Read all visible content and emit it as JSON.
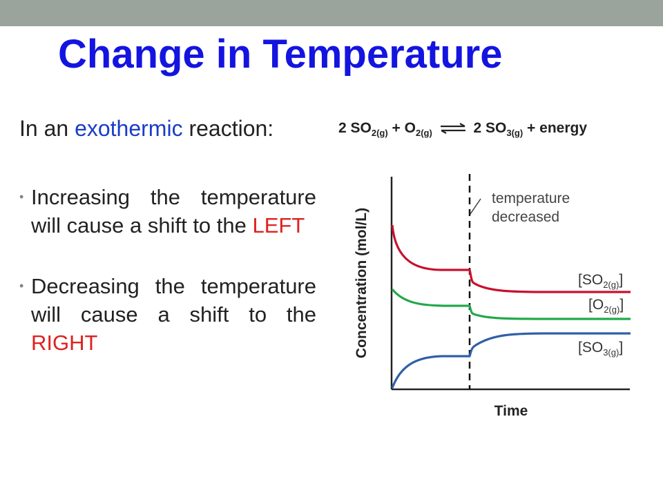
{
  "slide": {
    "title": "Change in Temperature",
    "intro": {
      "prefix": "In an ",
      "highlight": "exothermic",
      "suffix": " reaction:"
    },
    "bullets": [
      {
        "text": "Increasing the temperature will cause a shift to the ",
        "highlight": "LEFT"
      },
      {
        "text": "Decreasing the temperature will cause a shift to the ",
        "highlight": "RIGHT"
      }
    ]
  },
  "equation": {
    "c1": "2 SO",
    "s1": "2(g)",
    "plus1": " + O",
    "s2": "2(g)",
    "c2": "2 SO",
    "s3": "3(g)",
    "tail": " + energy"
  },
  "diagram": {
    "ylabel": "Concentration (mol/L)",
    "xlabel": "Time",
    "annotation_line1": "temperature",
    "annotation_line2": "decreased",
    "series": [
      {
        "name": "SO",
        "sub": "2(g)",
        "color": "#c8102e"
      },
      {
        "name": "O",
        "sub": "2(g)",
        "color": "#22a84a"
      },
      {
        "name": "SO",
        "sub": "3(g)",
        "color": "#2f5fa8"
      }
    ]
  },
  "colors": {
    "title": "#1414e0",
    "exothermic": "#1a3cc8",
    "direction": "#e02020",
    "topbar": "#9aa39c"
  }
}
